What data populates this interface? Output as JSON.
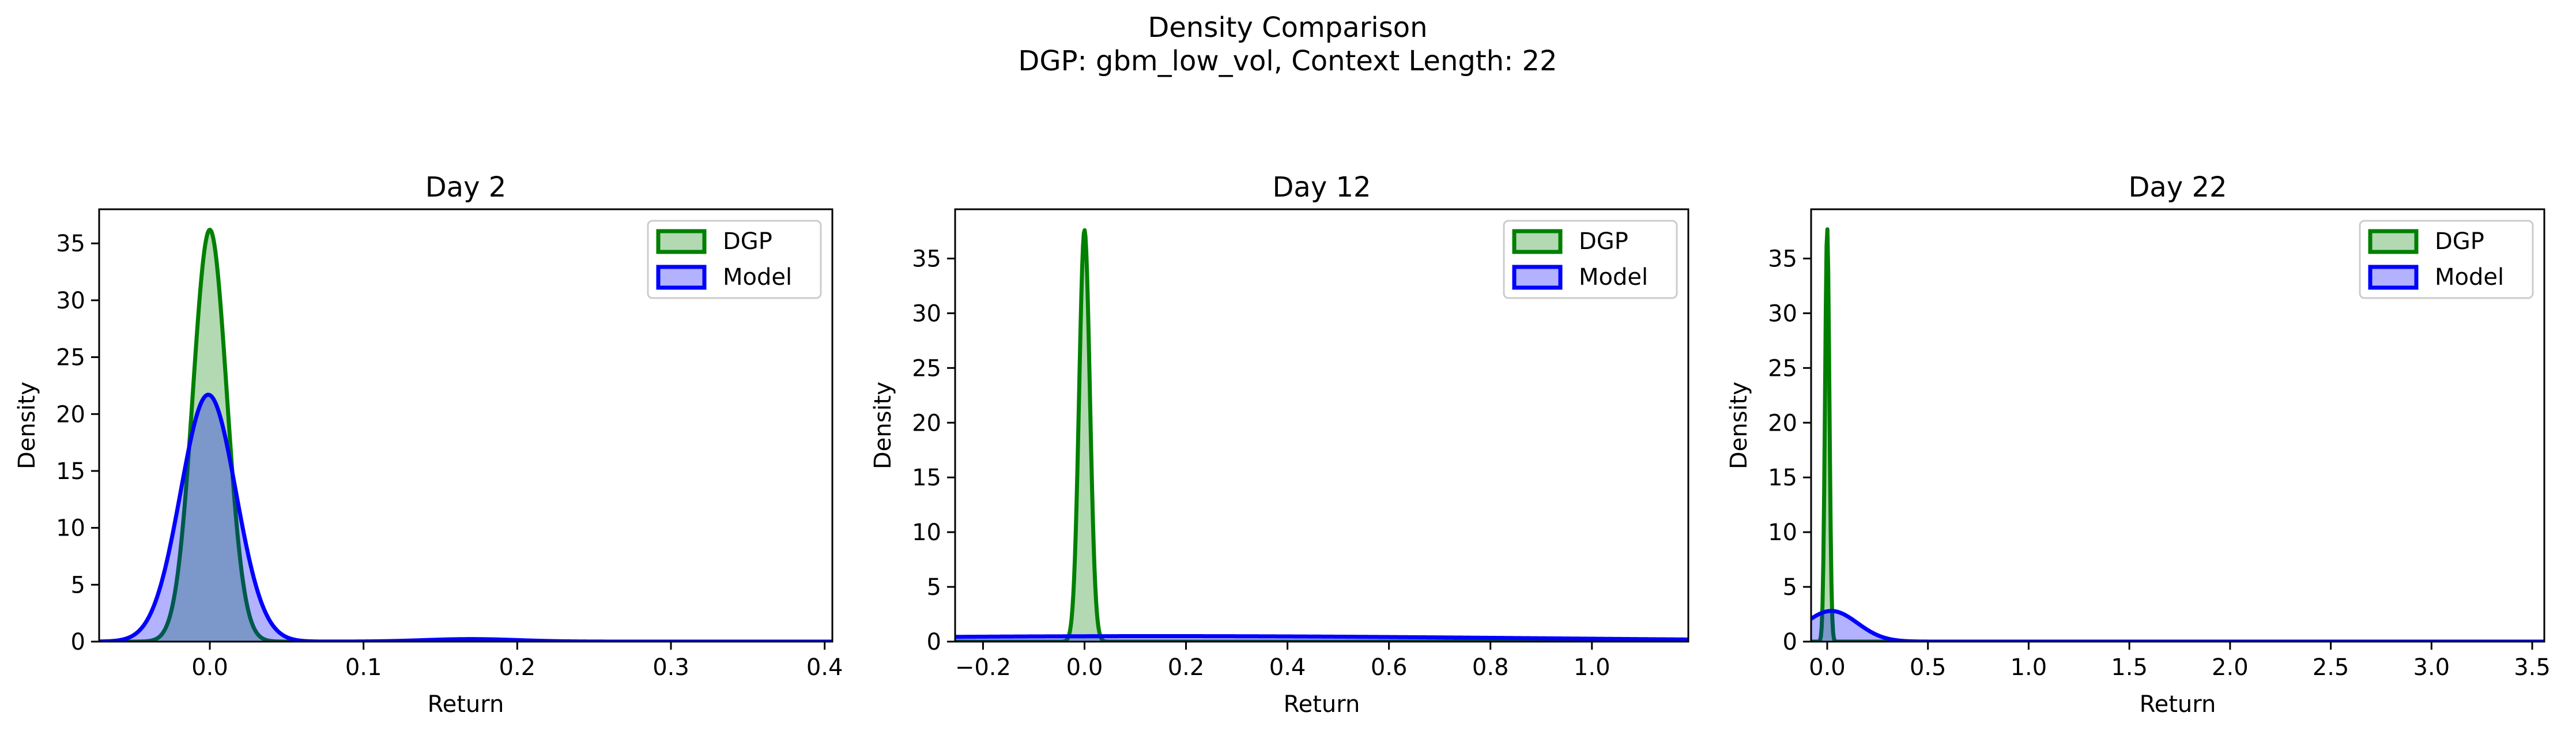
{
  "figure": {
    "title_line1": "Density Comparison",
    "title_line2": "DGP: gbm_low_vol, Context Length: 22"
  },
  "chart_data": [
    {
      "type": "area",
      "title": "Day 2",
      "xlabel": "Return",
      "ylabel": "Density",
      "xlim": [
        -0.072,
        0.405
      ],
      "ylim": [
        0,
        38
      ],
      "xticks": [
        0.0,
        0.1,
        0.2,
        0.3,
        0.4
      ],
      "xtick_labels": [
        "0.0",
        "0.1",
        "0.2",
        "0.3",
        "0.4"
      ],
      "yticks": [
        0,
        5,
        10,
        15,
        20,
        25,
        30,
        35
      ],
      "ytick_labels": [
        "0",
        "5",
        "10",
        "15",
        "20",
        "25",
        "30",
        "35"
      ],
      "grid": false,
      "legend": "upper right",
      "series": [
        {
          "name": "DGP",
          "color": "#008000",
          "peak_x": 0.0,
          "peak_density": 36.2,
          "std": 0.011
        },
        {
          "name": "Model",
          "color": "#0000ff",
          "peak_x": -0.001,
          "peak_density": 21.7,
          "std": 0.018,
          "tail_bump_x": 0.17,
          "tail_bump_density": 0.22
        }
      ]
    },
    {
      "type": "area",
      "title": "Day 12",
      "xlabel": "Return",
      "ylabel": "Density",
      "xlim": [
        -0.255,
        1.19
      ],
      "ylim": [
        0,
        39.5
      ],
      "xticks": [
        -0.2,
        0.0,
        0.2,
        0.4,
        0.6,
        0.8,
        1.0
      ],
      "xtick_labels": [
        "−0.2",
        "0.0",
        "0.2",
        "0.4",
        "0.6",
        "0.8",
        "1.0"
      ],
      "yticks": [
        0,
        5,
        10,
        15,
        20,
        25,
        30,
        35
      ],
      "ytick_labels": [
        "0",
        "5",
        "10",
        "15",
        "20",
        "25",
        "30",
        "35"
      ],
      "grid": false,
      "legend": "upper right",
      "series": [
        {
          "name": "DGP",
          "color": "#008000",
          "peak_x": 0.0,
          "peak_density": 37.6,
          "std": 0.0106
        },
        {
          "name": "Model",
          "color": "#0000ff",
          "peak_x": 0.15,
          "peak_density": 0.5,
          "std": 0.75
        }
      ]
    },
    {
      "type": "area",
      "title": "Day 22",
      "xlabel": "Return",
      "ylabel": "Density",
      "xlim": [
        -0.08,
        3.56
      ],
      "ylim": [
        0,
        39.5
      ],
      "xticks": [
        0.0,
        0.5,
        1.0,
        1.5,
        2.0,
        2.5,
        3.0,
        3.5
      ],
      "xtick_labels": [
        "0.0",
        "0.5",
        "1.0",
        "1.5",
        "2.0",
        "2.5",
        "3.0",
        "3.5"
      ],
      "yticks": [
        0,
        5,
        10,
        15,
        20,
        25,
        30,
        35
      ],
      "ytick_labels": [
        "0",
        "5",
        "10",
        "15",
        "20",
        "25",
        "30",
        "35"
      ],
      "grid": false,
      "legend": "upper right",
      "series": [
        {
          "name": "DGP",
          "color": "#008000",
          "peak_x": 0.0,
          "peak_density": 37.8,
          "std": 0.0106
        },
        {
          "name": "Model",
          "color": "#0000ff",
          "peak_x": 0.02,
          "peak_density": 2.8,
          "std": 0.13
        }
      ]
    }
  ]
}
